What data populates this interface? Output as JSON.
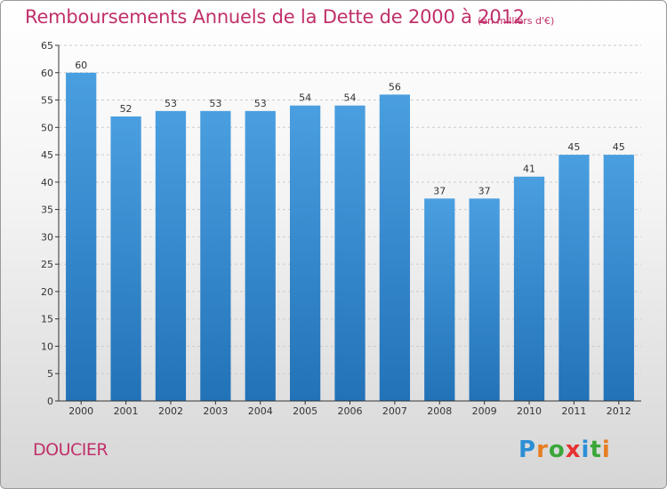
{
  "title": "Remboursements Annuels de la Dette de 2000 à 2012",
  "unit_note": "(en milliers d'€)",
  "commune": "DOUCIER",
  "logo": {
    "letters": [
      "P",
      "r",
      "o",
      "x",
      "i",
      "t",
      "i"
    ],
    "colors": [
      "#2c8fd6",
      "#e67e22",
      "#3aa63a",
      "#e63232",
      "#2c8fd6",
      "#3aa63a",
      "#e67e22"
    ]
  },
  "colors": {
    "bar": "#4a9fe0",
    "bar_dark": "#2272b8",
    "title": "#c0306a",
    "axis": "#333333",
    "grid": "#cccccc"
  },
  "chart_data": {
    "type": "bar",
    "categories": [
      "2000",
      "2001",
      "2002",
      "2003",
      "2004",
      "2005",
      "2006",
      "2007",
      "2008",
      "2009",
      "2010",
      "2011",
      "2012"
    ],
    "values": [
      60,
      52,
      53,
      53,
      53,
      54,
      54,
      56,
      37,
      37,
      41,
      45,
      45
    ],
    "ylim": [
      0,
      65
    ],
    "yticks": [
      0,
      5,
      10,
      15,
      20,
      25,
      30,
      35,
      40,
      45,
      50,
      55,
      60,
      65
    ],
    "grid": true,
    "data_labels": true
  }
}
